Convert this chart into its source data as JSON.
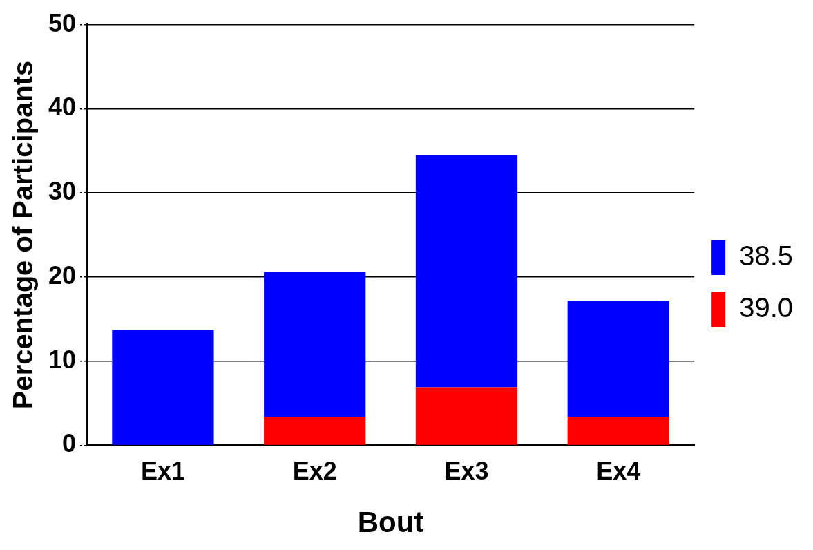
{
  "chart_data": {
    "type": "bar",
    "xlabel": "Bout",
    "ylabel": "Percentage of Participants",
    "categories": [
      "Ex1",
      "Ex2",
      "Ex3",
      "Ex4"
    ],
    "stacked": true,
    "series": [
      {
        "name": "39.0",
        "color": "#ff0000",
        "values": [
          0,
          3.4,
          6.9,
          3.4
        ]
      },
      {
        "name": "38.5",
        "color": "#0000ff",
        "values": [
          13.7,
          17.2,
          27.6,
          13.8
        ]
      }
    ],
    "ylim": [
      0,
      50
    ],
    "yticks": [
      0,
      10,
      20,
      30,
      40,
      50
    ],
    "grid": "y",
    "legend": "right"
  }
}
